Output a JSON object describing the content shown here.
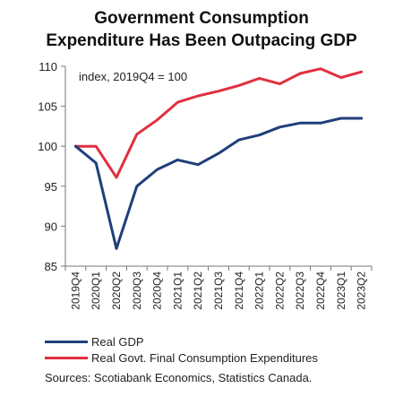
{
  "chart_data": {
    "type": "line",
    "title_lines": [
      "Government Consumption",
      "Expenditure Has Been Outpacing GDP"
    ],
    "annotation": "index, 2019Q4 = 100",
    "x": [
      "2019Q4",
      "2020Q1",
      "2020Q2",
      "2020Q3",
      "2020Q4",
      "2021Q1",
      "2021Q2",
      "2021Q3",
      "2021Q4",
      "2022Q1",
      "2022Q2",
      "2022Q3",
      "2022Q4",
      "2023Q1",
      "2023Q2"
    ],
    "ylim": [
      85,
      110
    ],
    "yticks": [
      85,
      90,
      95,
      100,
      105,
      110
    ],
    "grid": false,
    "legend_position": "bottom",
    "series": [
      {
        "name": "Real GDP",
        "color": "#1f3f7a",
        "values": [
          100.0,
          97.9,
          87.2,
          95.0,
          97.1,
          98.3,
          97.7,
          99.1,
          100.8,
          101.4,
          102.4,
          102.9,
          102.9,
          103.5,
          103.5
        ]
      },
      {
        "name": "Real Govt. Final Consumption Expenditures",
        "color": "#e03040",
        "values": [
          100.0,
          100.0,
          96.1,
          101.5,
          103.3,
          105.5,
          106.3,
          106.9,
          107.6,
          108.5,
          107.8,
          109.1,
          109.7,
          108.6,
          109.3
        ]
      }
    ],
    "source": "Sources: Scotiabank Economics, Statistics Canada."
  }
}
